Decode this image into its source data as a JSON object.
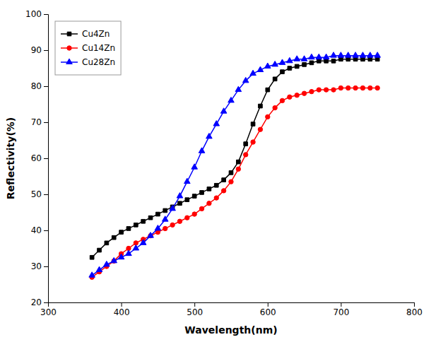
{
  "chart_data": {
    "type": "line",
    "xlabel": "Wavelength(nm)",
    "ylabel": "Reflectivity(%)",
    "x": [
      360,
      370,
      380,
      390,
      400,
      410,
      420,
      430,
      440,
      450,
      460,
      470,
      480,
      490,
      500,
      510,
      520,
      530,
      540,
      550,
      560,
      570,
      580,
      590,
      600,
      610,
      620,
      630,
      640,
      650,
      660,
      670,
      680,
      690,
      700,
      710,
      720,
      730,
      740,
      750
    ],
    "xlim": [
      300,
      800
    ],
    "ylim": [
      20,
      100
    ],
    "xticks": [
      300,
      400,
      500,
      600,
      700,
      800
    ],
    "yticks": [
      20,
      30,
      40,
      50,
      60,
      70,
      80,
      90,
      100
    ],
    "legend": "upper left",
    "series": [
      {
        "name": "Cu4Zn",
        "color": "#000000",
        "marker": "square",
        "values": [
          32.5,
          34.5,
          36.5,
          38.0,
          39.5,
          40.5,
          41.5,
          42.5,
          43.5,
          44.5,
          45.5,
          46.5,
          47.5,
          48.5,
          49.5,
          50.5,
          51.5,
          52.5,
          54.0,
          56.0,
          59.0,
          64.0,
          69.5,
          74.5,
          79.0,
          82.0,
          84.0,
          85.0,
          85.5,
          86.0,
          86.5,
          87.0,
          87.0,
          87.0,
          87.5,
          87.5,
          87.5,
          87.5,
          87.5,
          87.5
        ]
      },
      {
        "name": "Cu14Zn",
        "color": "#ff0000",
        "marker": "circle",
        "values": [
          27.0,
          28.5,
          30.0,
          31.5,
          33.5,
          35.0,
          36.5,
          37.5,
          38.5,
          39.5,
          40.5,
          41.5,
          42.5,
          43.5,
          44.5,
          46.0,
          47.5,
          49.0,
          51.0,
          53.5,
          57.0,
          61.0,
          64.5,
          68.0,
          71.5,
          74.0,
          76.0,
          77.0,
          77.5,
          78.0,
          78.5,
          79.0,
          79.0,
          79.0,
          79.5,
          79.5,
          79.5,
          79.5,
          79.5,
          79.5
        ]
      },
      {
        "name": "Cu28Zn",
        "color": "#0000ff",
        "marker": "triangle",
        "values": [
          27.5,
          29.0,
          30.5,
          31.5,
          32.5,
          33.5,
          35.0,
          36.5,
          38.5,
          40.5,
          43.0,
          46.0,
          49.5,
          53.5,
          57.5,
          62.0,
          66.0,
          69.5,
          73.0,
          76.0,
          79.0,
          81.5,
          83.5,
          84.5,
          85.5,
          86.0,
          86.5,
          87.0,
          87.5,
          87.5,
          88.0,
          88.0,
          88.0,
          88.5,
          88.5,
          88.5,
          88.5,
          88.5,
          88.5,
          88.5
        ]
      }
    ]
  }
}
